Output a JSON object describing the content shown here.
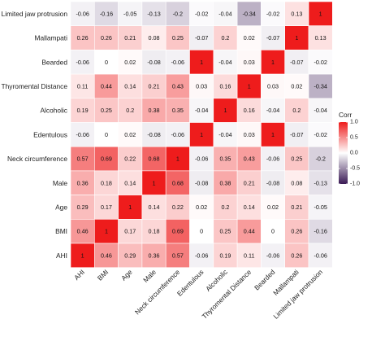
{
  "chart_data": {
    "type": "heatmap",
    "title": "",
    "xlabel": "",
    "ylabel": "",
    "x_labels": [
      "AHI",
      "BMI",
      "Age",
      "Male",
      "Neck circumference",
      "Edentulous",
      "Alcoholic",
      "Thyromental Distance",
      "Bearded",
      "Mallampati",
      "Limited jaw protrusion"
    ],
    "y_labels_top_to_bottom": [
      "Limited jaw protrusion",
      "Mallampati",
      "Bearded",
      "Thyromental Distance",
      "Alcoholic",
      "Edentulous",
      "Neck circumference",
      "Male",
      "Age",
      "BMI",
      "AHI"
    ],
    "values_top_to_bottom": [
      [
        -0.06,
        -0.16,
        -0.05,
        -0.13,
        -0.2,
        -0.02,
        -0.04,
        -0.34,
        -0.02,
        0.13,
        1
      ],
      [
        0.26,
        0.26,
        0.21,
        0.08,
        0.25,
        -0.07,
        0.2,
        0.02,
        -0.07,
        1,
        0.13
      ],
      [
        -0.06,
        0,
        0.02,
        -0.08,
        -0.06,
        1,
        -0.04,
        0.03,
        1,
        -0.07,
        -0.02
      ],
      [
        0.11,
        0.44,
        0.14,
        0.21,
        0.43,
        0.03,
        0.16,
        1,
        0.03,
        0.02,
        -0.34
      ],
      [
        0.19,
        0.25,
        0.2,
        0.38,
        0.35,
        -0.04,
        1,
        0.16,
        -0.04,
        0.2,
        -0.04
      ],
      [
        -0.06,
        0,
        0.02,
        -0.08,
        -0.06,
        1,
        -0.04,
        0.03,
        1,
        -0.07,
        -0.02
      ],
      [
        0.57,
        0.69,
        0.22,
        0.68,
        1,
        -0.06,
        0.35,
        0.43,
        -0.06,
        0.25,
        -0.2
      ],
      [
        0.36,
        0.18,
        0.14,
        1,
        0.68,
        -0.08,
        0.38,
        0.21,
        -0.08,
        0.08,
        -0.13
      ],
      [
        0.29,
        0.17,
        1,
        0.14,
        0.22,
        0.02,
        0.2,
        0.14,
        0.02,
        0.21,
        -0.05
      ],
      [
        0.46,
        1,
        0.17,
        0.18,
        0.69,
        0,
        0.25,
        0.44,
        0,
        0.26,
        -0.16
      ],
      [
        1,
        0.46,
        0.29,
        0.36,
        0.57,
        -0.06,
        0.19,
        0.11,
        -0.06,
        0.26,
        -0.06
      ]
    ],
    "range": [
      -1,
      1
    ],
    "legend": {
      "title": "Corr",
      "placement": "right",
      "ticks": [
        "1.0",
        "0.5",
        "0.0",
        "-0.5",
        "-1.0"
      ],
      "tick_values": [
        1.0,
        0.5,
        0.0,
        -0.5,
        -1.0
      ]
    },
    "colors": {
      "high": "#ee1c1c",
      "mid": "#ffffff",
      "low": "#3a1a55"
    },
    "grid": false
  }
}
